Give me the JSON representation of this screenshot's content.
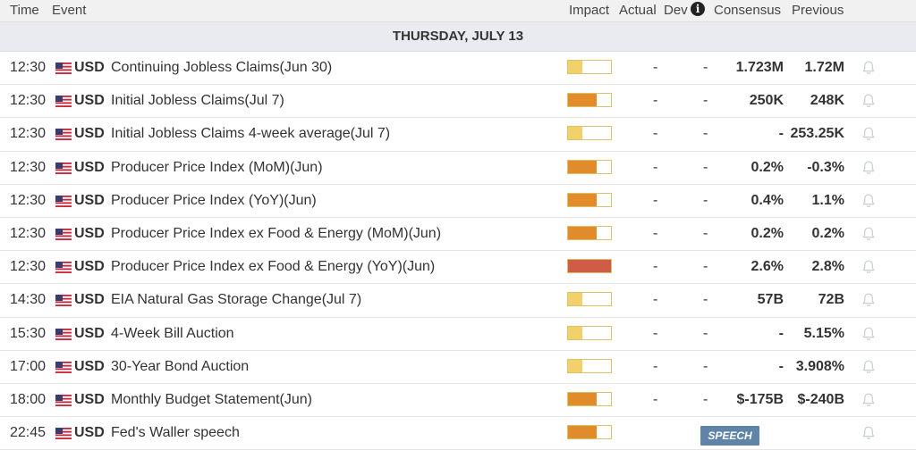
{
  "header": {
    "time": "Time",
    "event": "Event",
    "impact": "Impact",
    "actual": "Actual",
    "dev": "Dev",
    "info_icon": "info-icon",
    "consensus": "Consensus",
    "previous": "Previous"
  },
  "date_label": "THURSDAY, JULY 13",
  "colors": {
    "impact_low": "#f2d06b",
    "impact_medium": "#e08c2a",
    "impact_high": "#d05b47",
    "impact_border": "#d9c26a",
    "speech_badge": "#5f84a8"
  },
  "events": [
    {
      "time": "12:30",
      "currency": "USD",
      "name": "Continuing Jobless Claims(Jun 30)",
      "impact": "low",
      "impact_fraction": 0.33,
      "actual": "-",
      "dev": "-",
      "consensus": "1.723M",
      "previous": "1.72M"
    },
    {
      "time": "12:30",
      "currency": "USD",
      "name": "Initial Jobless Claims(Jul 7)",
      "impact": "medium",
      "impact_fraction": 0.67,
      "actual": "-",
      "dev": "-",
      "consensus": "250K",
      "previous": "248K"
    },
    {
      "time": "12:30",
      "currency": "USD",
      "name": "Initial Jobless Claims 4-week average(Jul 7)",
      "impact": "low",
      "impact_fraction": 0.33,
      "actual": "-",
      "dev": "-",
      "consensus": "-",
      "previous": "253.25K"
    },
    {
      "time": "12:30",
      "currency": "USD",
      "name": "Producer Price Index (MoM)(Jun)",
      "impact": "medium",
      "impact_fraction": 0.67,
      "actual": "-",
      "dev": "-",
      "consensus": "0.2%",
      "previous": "-0.3%"
    },
    {
      "time": "12:30",
      "currency": "USD",
      "name": "Producer Price Index (YoY)(Jun)",
      "impact": "medium",
      "impact_fraction": 0.67,
      "actual": "-",
      "dev": "-",
      "consensus": "0.4%",
      "previous": "1.1%"
    },
    {
      "time": "12:30",
      "currency": "USD",
      "name": "Producer Price Index ex Food & Energy (MoM)(Jun)",
      "impact": "medium",
      "impact_fraction": 0.67,
      "actual": "-",
      "dev": "-",
      "consensus": "0.2%",
      "previous": "0.2%"
    },
    {
      "time": "12:30",
      "currency": "USD",
      "name": "Producer Price Index ex Food & Energy (YoY)(Jun)",
      "impact": "high",
      "impact_fraction": 1.0,
      "actual": "-",
      "dev": "-",
      "consensus": "2.6%",
      "previous": "2.8%"
    },
    {
      "time": "14:30",
      "currency": "USD",
      "name": "EIA Natural Gas Storage Change(Jul 7)",
      "impact": "low",
      "impact_fraction": 0.33,
      "actual": "-",
      "dev": "-",
      "consensus": "57B",
      "previous": "72B"
    },
    {
      "time": "15:30",
      "currency": "USD",
      "name": "4-Week Bill Auction",
      "impact": "low",
      "impact_fraction": 0.33,
      "actual": "-",
      "dev": "-",
      "consensus": "-",
      "previous": "5.15%"
    },
    {
      "time": "17:00",
      "currency": "USD",
      "name": "30-Year Bond Auction",
      "impact": "low",
      "impact_fraction": 0.33,
      "actual": "-",
      "dev": "-",
      "consensus": "-",
      "previous": "3.908%"
    },
    {
      "time": "18:00",
      "currency": "USD",
      "name": "Monthly Budget Statement(Jun)",
      "impact": "medium",
      "impact_fraction": 0.67,
      "actual": "-",
      "dev": "-",
      "consensus": "$-175B",
      "previous": "$-240B"
    },
    {
      "time": "22:45",
      "currency": "USD",
      "name": "Fed's Waller speech",
      "impact": "medium",
      "impact_fraction": 0.67,
      "actual": "",
      "dev": "",
      "consensus": "",
      "previous": "",
      "badge": "SPEECH"
    }
  ]
}
